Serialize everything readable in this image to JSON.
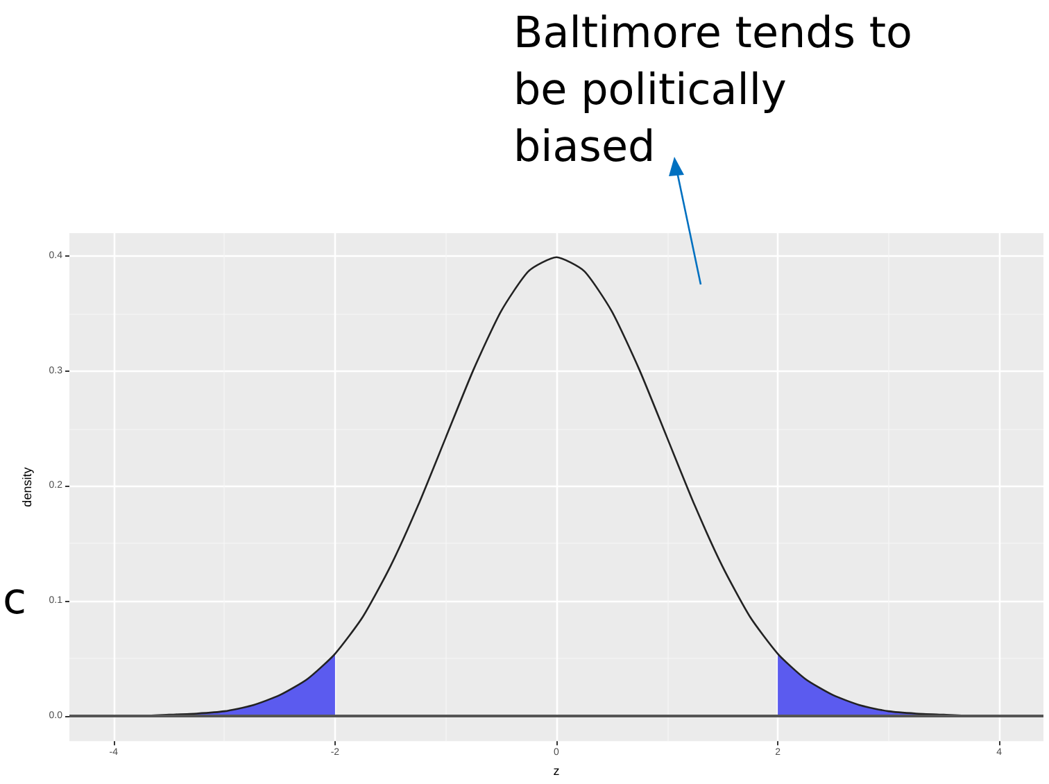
{
  "chart_data": {
    "type": "line",
    "xlabel": "z",
    "ylabel": "density",
    "annotations": [
      "Baltimore tends to\nbe politically\nbiased",
      "c"
    ],
    "series": [
      {
        "color": "#222222",
        "x": [
          -4,
          -3.75,
          -3.5,
          -3.25,
          -3,
          -2.75,
          -2.5,
          -2.25,
          -2,
          -1.75,
          -1.5,
          -1.25,
          -1,
          -0.75,
          -0.5,
          -0.25,
          0,
          0.25,
          0.5,
          0.75,
          1,
          1.25,
          1.5,
          1.75,
          2,
          2.25,
          2.5,
          2.75,
          3,
          3.25,
          3.5,
          3.75,
          4
        ],
        "values": [
          0.0,
          0.0,
          0.001,
          0.002,
          0.004,
          0.009,
          0.018,
          0.032,
          0.054,
          0.086,
          0.13,
          0.183,
          0.242,
          0.301,
          0.352,
          0.387,
          0.399,
          0.387,
          0.352,
          0.301,
          0.242,
          0.183,
          0.13,
          0.086,
          0.054,
          0.032,
          0.018,
          0.009,
          0.004,
          0.002,
          0.001,
          0.0,
          0.0
        ]
      },
      {
        "type": "area",
        "color": "#5b5bef",
        "x": [
          -4,
          -3.75,
          -3.5,
          -3.25,
          -3,
          -2.75,
          -2.5,
          -2.25,
          -2
        ],
        "values": [
          0.0,
          0.0,
          0.001,
          0.002,
          0.004,
          0.009,
          0.018,
          0.032,
          0.054
        ]
      },
      {
        "type": "area",
        "color": "#5b5bef",
        "x": [
          2,
          2.25,
          2.5,
          2.75,
          3,
          3.25,
          3.5,
          3.75,
          4
        ],
        "values": [
          0.054,
          0.032,
          0.018,
          0.009,
          0.004,
          0.002,
          0.001,
          0.0,
          0.0
        ]
      }
    ],
    "xlim": [
      -4.4,
      4.4
    ],
    "xticks": [
      -4,
      -2,
      0,
      2,
      4
    ],
    "ylim": [
      -0.022,
      0.42
    ],
    "yticks": [
      {
        "value": 0,
        "label": "0.0"
      },
      0.1,
      0.2,
      0.3,
      0.4
    ],
    "ref_lines": [
      {
        "axis": "y",
        "value": 0,
        "color": "#555555"
      }
    ],
    "grid": true,
    "marker": "none"
  }
}
